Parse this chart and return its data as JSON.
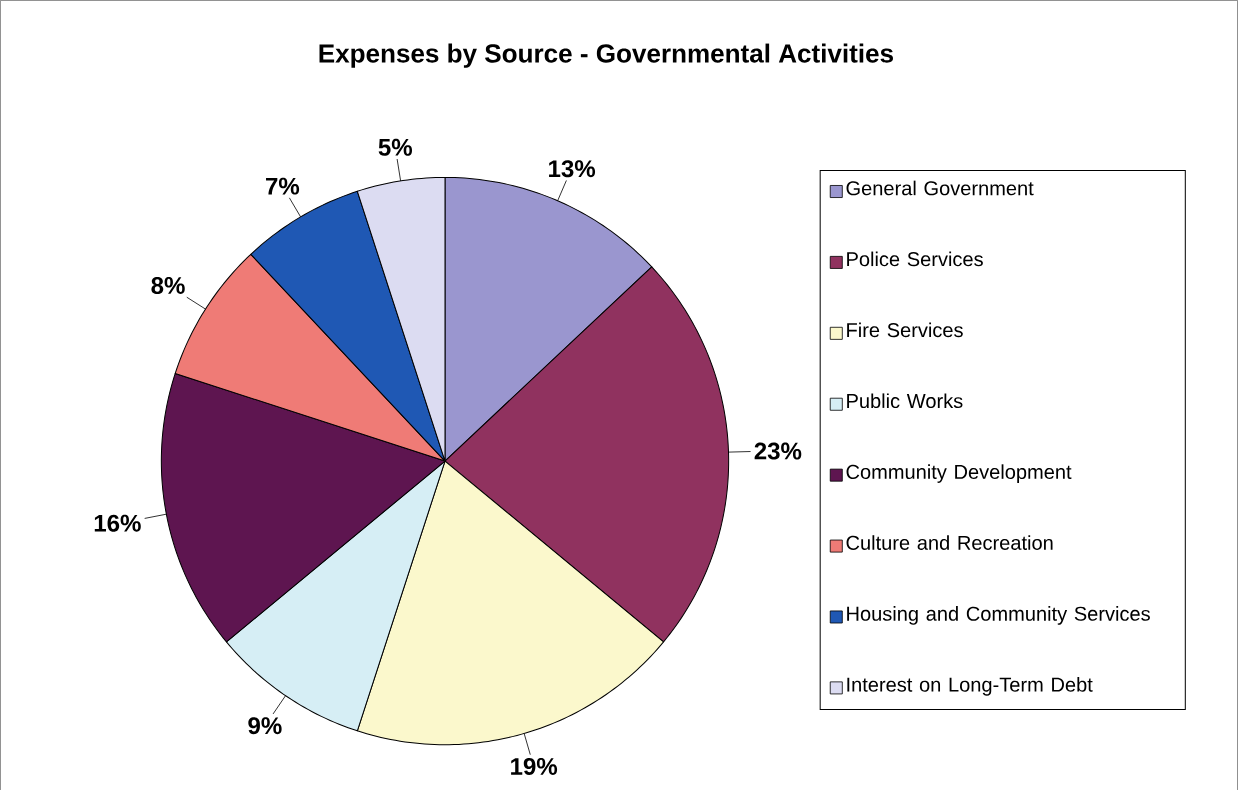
{
  "chart_data": {
    "type": "pie",
    "title": "Expenses by Source - Governmental Activities",
    "categories": [
      "General Government",
      "Police Services",
      "Fire Services",
      "Public Works",
      "Community Development",
      "Culture and Recreation",
      "Housing and Community Services",
      "Interest on Long-Term Debt"
    ],
    "values": [
      13,
      23,
      19,
      9,
      16,
      8,
      7,
      5
    ],
    "value_labels": [
      "13%",
      "23%",
      "19%",
      "9%",
      "16%",
      "8%",
      "7%",
      "5%"
    ],
    "colors": [
      "#9a96cf",
      "#90325f",
      "#fbf8cc",
      "#d6eef5",
      "#5e1550",
      "#ef7b76",
      "#1f58b4",
      "#dcdcf2"
    ],
    "legend": "right"
  }
}
